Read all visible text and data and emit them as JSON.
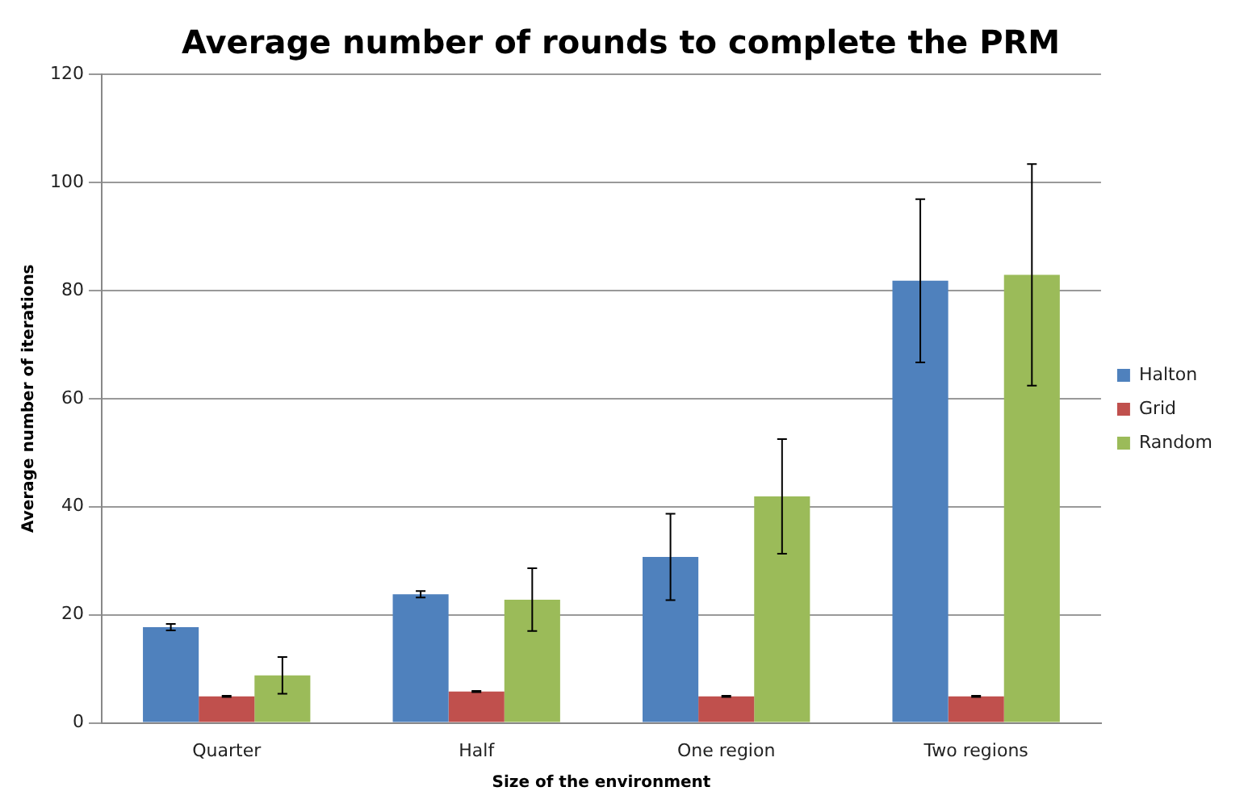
{
  "chart_data": {
    "type": "bar",
    "title": "Average number of rounds to complete the PRM",
    "xlabel": "Size of the environment",
    "ylabel": "Average number of iterations",
    "categories": [
      "Quarter",
      "Half",
      "One region",
      "Two regions"
    ],
    "series": [
      {
        "name": "Halton",
        "color": "#4f81bd",
        "values": [
          17.7,
          23.8,
          30.7,
          81.8
        ],
        "errors": [
          0.6,
          0.6,
          8,
          15.1
        ]
      },
      {
        "name": "Grid",
        "color": "#c0504d",
        "values": [
          4.9,
          5.8,
          4.9,
          4.9
        ],
        "errors": [
          0.1,
          0.1,
          0.1,
          0.1
        ]
      },
      {
        "name": "Random",
        "color": "#9bbb59",
        "values": [
          8.8,
          22.8,
          41.9,
          82.9
        ],
        "errors": [
          3.4,
          5.8,
          10.6,
          20.5
        ]
      }
    ],
    "ylim": [
      0,
      120
    ],
    "yticks": [
      0,
      20,
      40,
      60,
      80,
      100,
      120
    ],
    "grid": "y",
    "legend": "right"
  }
}
